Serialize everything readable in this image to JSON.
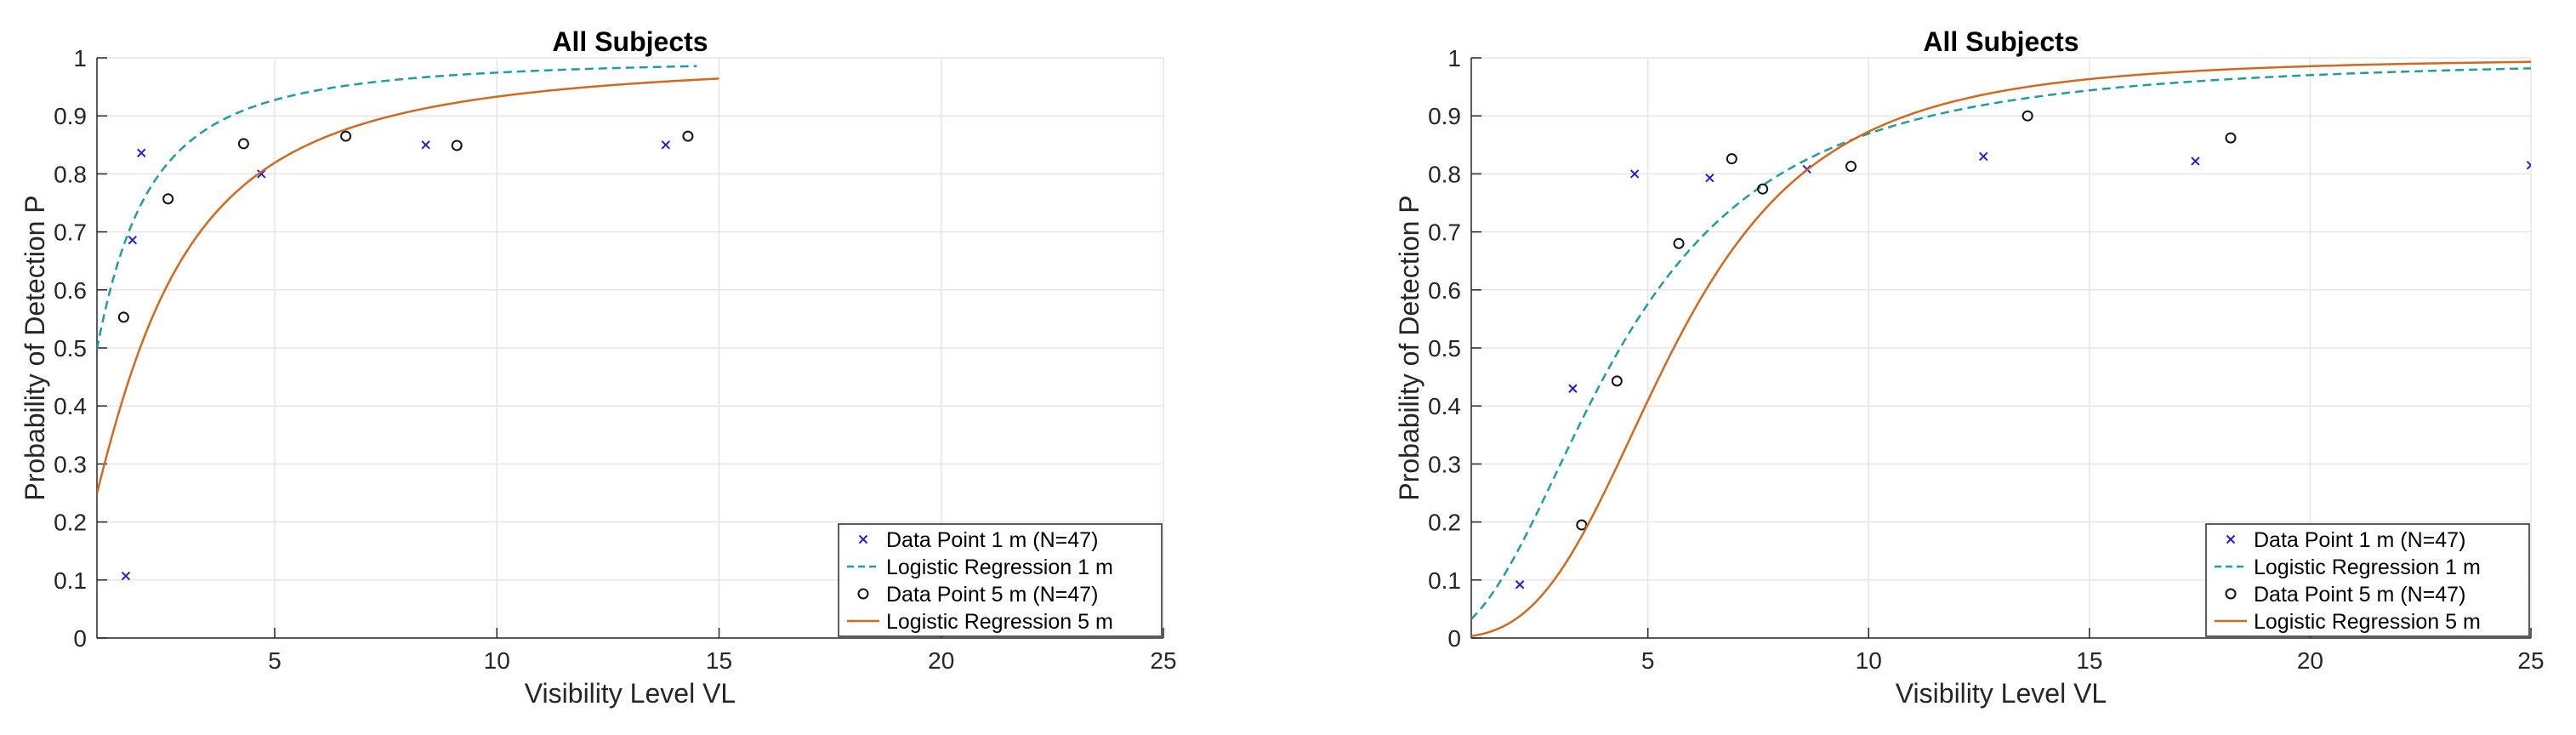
{
  "chart_data": [
    {
      "type": "scatter",
      "title": "All Subjects",
      "xlabel": "Visibility Level VL",
      "ylabel": "Probability of Detection P",
      "xlim": [
        1,
        25
      ],
      "ylim": [
        0,
        1
      ],
      "xticks": [
        5,
        10,
        15,
        20,
        25
      ],
      "yticks": [
        0,
        0.1,
        0.2,
        0.3,
        0.4,
        0.5,
        0.6,
        0.7,
        0.8,
        0.9,
        1
      ],
      "grid": true,
      "legend_position": "bottom-right",
      "series": [
        {
          "name": "Data Point 1 m (N=47)",
          "kind": "points",
          "marker": "x",
          "color": "#1f1fd6",
          "x": [
            1.65,
            1.8,
            2.0,
            4.7,
            8.4,
            13.8
          ],
          "y": [
            0.107,
            0.686,
            0.836,
            0.8,
            0.85,
            0.85
          ]
        },
        {
          "name": "Logistic Regression 1 m",
          "kind": "curve",
          "style": "dashed",
          "color": "#1f9e9e",
          "x_range": [
            1,
            14.5
          ],
          "logit": {
            "a": -0.0087,
            "b": 1.5876
          }
        },
        {
          "name": "Data Point 5 m (N=47)",
          "kind": "points",
          "marker": "o",
          "color": "#111111",
          "x": [
            1.6,
            2.6,
            4.3,
            6.6,
            9.1,
            14.3
          ],
          "y": [
            0.553,
            0.757,
            0.852,
            0.865,
            0.849,
            0.865
          ]
        },
        {
          "name": "Logistic Regression 5 m",
          "kind": "curve",
          "style": "solid",
          "color": "#d2691e",
          "x_range": [
            1,
            15
          ],
          "logit": {
            "a": -1.1009,
            "b": 1.6224
          }
        }
      ]
    },
    {
      "type": "scatter",
      "title": "All Subjects",
      "xlabel": "Visibility Level VL",
      "ylabel": "Probability of Detection P",
      "xlim": [
        1,
        25
      ],
      "ylim": [
        0,
        1
      ],
      "xticks": [
        5,
        10,
        15,
        20,
        25
      ],
      "yticks": [
        0,
        0.1,
        0.2,
        0.3,
        0.4,
        0.5,
        0.6,
        0.7,
        0.8,
        0.9,
        1
      ],
      "grid": true,
      "legend_position": "bottom-right",
      "series": [
        {
          "name": "Data Point 1 m (N=47)",
          "kind": "points",
          "marker": "x",
          "color": "#1f1fd6",
          "x": [
            2.1,
            3.3,
            4.7,
            6.4,
            8.6,
            12.6,
            17.4,
            25
          ],
          "y": [
            0.092,
            0.43,
            0.8,
            0.793,
            0.808,
            0.83,
            0.822,
            0.815
          ]
        },
        {
          "name": "Logistic Regression 1 m",
          "kind": "curve",
          "style": "dashed",
          "color": "#1f9e9e",
          "x_range": [
            1,
            25
          ],
          "logit": {
            "a": -3.3813,
            "b": 2.2913
          }
        },
        {
          "name": "Data Point 5 m (N=47)",
          "kind": "points",
          "marker": "o",
          "color": "#111111",
          "x": [
            3.5,
            4.3,
            5.7,
            6.9,
            7.6,
            9.6,
            13.6,
            18.2
          ],
          "y": [
            0.195,
            0.443,
            0.68,
            0.826,
            0.774,
            0.813,
            0.9,
            0.862
          ]
        },
        {
          "name": "Logistic Regression 5 m",
          "kind": "curve",
          "style": "solid",
          "color": "#d2691e",
          "x_range": [
            1,
            25
          ],
          "logit": {
            "a": -5.6937,
            "b": 3.3096
          }
        }
      ]
    }
  ]
}
